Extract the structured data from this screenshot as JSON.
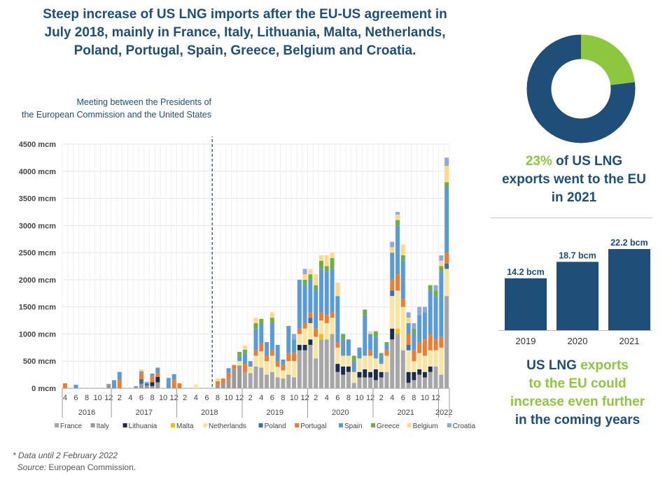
{
  "title": "Steep increase of US LNG imports after the EU-US agreement in July 2018, mainly in France, Italy, Lithuania, Malta, Netherlands, Poland, Portugal, Spain, Greece, Belgium and Croatia.",
  "meeting_annotation": {
    "line1": "Meeting between the Presidents of",
    "line2": "the European Commission and the United States"
  },
  "footnote": {
    "data_note": "Data until 2 February 2022",
    "source_label": "Source:",
    "source_text": "European Commission."
  },
  "kpi": {
    "percent": "23%",
    "text_line1": "of US LNG",
    "text_line2": "exports went to the EU",
    "text_line3": "in 2021"
  },
  "outlook": {
    "line1_a": "US LNG",
    "line1_b": "exports",
    "line2": "to the EU could",
    "line3": "increase even further",
    "line4": "in the coming years"
  },
  "colors": {
    "France": "#a6a6a6",
    "Italy": "#999999",
    "Lithuania": "#1c2b4a",
    "Malta": "#f2c200",
    "Netherlands": "#f8e5a0",
    "Poland": "#3a6fb0",
    "Portugal": "#ed7d31",
    "Spain": "#5b9bd5",
    "Greece": "#70ad47",
    "Belgium": "#ffd98a",
    "Croatia": "#8ea9db",
    "navy": "#1f4e79",
    "green": "#8dc63f"
  },
  "chart_data": [
    {
      "type": "bar",
      "stacked": true,
      "ylim": [
        0,
        4500
      ],
      "yticks": [
        "0 mcm",
        "500 mcm",
        "1000 mcm",
        "1500 mcm",
        "2000 mcm",
        "2500 mcm",
        "3000 mcm",
        "3500 mcm",
        "4000 mcm",
        "4500 mcm"
      ],
      "grid": true,
      "legend_position": "bottom",
      "series_names": [
        "France",
        "Italy",
        "Lithuania",
        "Malta",
        "Netherlands",
        "Poland",
        "Portugal",
        "Spain",
        "Greece",
        "Belgium",
        "Croatia"
      ],
      "year_labels": [
        "2016",
        "2017",
        "2018",
        "2019",
        "2020",
        "2021",
        "2022"
      ],
      "month_ticks": [
        "4",
        "6",
        "8",
        "10",
        "12",
        "2",
        "4",
        "6",
        "8",
        "10",
        "12",
        "2",
        "4",
        "6",
        "8",
        "10",
        "12",
        "2",
        "4",
        "6",
        "8",
        "10",
        "12",
        "2",
        "4",
        "6",
        "8",
        "10",
        "12",
        "2",
        "4",
        "6",
        "8",
        "10",
        "12"
      ],
      "annotation_month": "2018-07",
      "months": [
        {
          "m": "2016-04",
          "v": {
            "Portugal": 90
          }
        },
        {
          "m": "2016-05",
          "v": {}
        },
        {
          "m": "2016-06",
          "v": {
            "Spain": 65
          }
        },
        {
          "m": "2016-07",
          "v": {}
        },
        {
          "m": "2016-08",
          "v": {}
        },
        {
          "m": "2016-09",
          "v": {}
        },
        {
          "m": "2016-10",
          "v": {}
        },
        {
          "m": "2016-11",
          "v": {}
        },
        {
          "m": "2016-12",
          "v": {
            "Italy": 80
          }
        },
        {
          "m": "2017-01",
          "v": {
            "Spain": 150
          }
        },
        {
          "m": "2017-02",
          "v": {
            "Portugal": 160,
            "Spain": 140
          }
        },
        {
          "m": "2017-03",
          "v": {}
        },
        {
          "m": "2017-04",
          "v": {}
        },
        {
          "m": "2017-05",
          "v": {
            "Italy": 40
          }
        },
        {
          "m": "2017-06",
          "v": {
            "Italy": 80,
            "Poland": 90,
            "Portugal": 110,
            "Spain": 30,
            "Belgium": 40
          }
        },
        {
          "m": "2017-07",
          "v": {
            "Italy": 50,
            "Poland": 40,
            "Croatia": 30
          }
        },
        {
          "m": "2017-08",
          "v": {
            "Italy": 40,
            "Lithuania": 70,
            "Portugal": 120,
            "Spain": 40
          }
        },
        {
          "m": "2017-09",
          "v": {
            "Italy": 110,
            "Lithuania": 100,
            "Portugal": 80,
            "Spain": 90
          }
        },
        {
          "m": "2017-10",
          "v": {}
        },
        {
          "m": "2017-11",
          "v": {
            "Spain": 190
          }
        },
        {
          "m": "2017-12",
          "v": {
            "Portugal": 160,
            "Spain": 100
          }
        },
        {
          "m": "2018-01",
          "v": {
            "Portugal": 90
          }
        },
        {
          "m": "2018-02",
          "v": {}
        },
        {
          "m": "2018-03",
          "v": {}
        },
        {
          "m": "2018-04",
          "v": {
            "Netherlands": 70
          }
        },
        {
          "m": "2018-05",
          "v": {}
        },
        {
          "m": "2018-06",
          "v": {}
        },
        {
          "m": "2018-07",
          "v": {}
        },
        {
          "m": "2018-08",
          "v": {
            "Italy": 60,
            "Portugal": 70,
            "Belgium": 50
          }
        },
        {
          "m": "2018-09",
          "v": {
            "Italy": 80,
            "Portugal": 100
          }
        },
        {
          "m": "2018-10",
          "v": {
            "Italy": 180,
            "Portugal": 100,
            "Spain": 90
          }
        },
        {
          "m": "2018-11",
          "v": {
            "Italy": 350,
            "Portugal": 80
          }
        },
        {
          "m": "2018-12",
          "v": {
            "Italy": 420,
            "Netherlands": 80,
            "Spain": 90,
            "Greece": 80
          }
        },
        {
          "m": "2019-01",
          "v": {
            "France": 300,
            "Portugal": 150,
            "Spain": 200,
            "Greece": 60,
            "Belgium": 80
          }
        },
        {
          "m": "2019-02",
          "v": {
            "France": 280,
            "Netherlands": 120,
            "Spain": 100
          }
        },
        {
          "m": "2019-03",
          "v": {
            "France": 400,
            "Netherlands": 200,
            "Portugal": 100,
            "Spain": 400,
            "Greece": 100,
            "Belgium": 100
          }
        },
        {
          "m": "2019-04",
          "v": {
            "France": 380,
            "Netherlands": 300,
            "Portugal": 150,
            "Spain": 350,
            "Greece": 100
          }
        },
        {
          "m": "2019-05",
          "v": {
            "France": 250,
            "Netherlands": 250,
            "Portugal": 100,
            "Spain": 250
          }
        },
        {
          "m": "2019-06",
          "v": {
            "France": 300,
            "Netherlands": 300,
            "Portugal": 100,
            "Spain": 500,
            "Greece": 100,
            "Belgium": 100
          }
        },
        {
          "m": "2019-07",
          "v": {
            "France": 200,
            "Netherlands": 200,
            "Portugal": 100,
            "Spain": 300
          }
        },
        {
          "m": "2019-08",
          "v": {
            "France": 180,
            "Netherlands": 150,
            "Portugal": 100,
            "Spain": 100
          }
        },
        {
          "m": "2019-09",
          "v": {
            "France": 250,
            "Netherlands": 250,
            "Portugal": 150,
            "Spain": 500
          }
        },
        {
          "m": "2019-10",
          "v": {
            "France": 200,
            "Netherlands": 300,
            "Portugal": 150,
            "Spain": 250,
            "Croatia": 100
          }
        },
        {
          "m": "2019-11",
          "v": {
            "France": 700,
            "Lithuania": 100,
            "Netherlands": 200,
            "Portugal": 100,
            "Spain": 900
          }
        },
        {
          "m": "2019-12",
          "v": {
            "France": 700,
            "Lithuania": 100,
            "Netherlands": 300,
            "Portugal": 100,
            "Spain": 700,
            "Greece": 100,
            "Belgium": 100,
            "Croatia": 100
          }
        },
        {
          "m": "2020-01",
          "v": {
            "France": 800,
            "Lithuania": 100,
            "Netherlands": 300,
            "Poland": 100,
            "Portugal": 100,
            "Spain": 600,
            "Greece": 100,
            "Belgium": 100
          }
        },
        {
          "m": "2020-02",
          "v": {
            "France": 550,
            "Netherlands": 400,
            "Portugal": 150,
            "Spain": 700,
            "Greece": 100,
            "Belgium": 200
          }
        },
        {
          "m": "2020-03",
          "v": {
            "France": 900,
            "Malta": 100,
            "Netherlands": 250,
            "Portugal": 150,
            "Spain": 800,
            "Greece": 150,
            "Belgium": 100
          }
        },
        {
          "m": "2020-04",
          "v": {
            "France": 900,
            "Netherlands": 300,
            "Portugal": 150,
            "Spain": 800,
            "Greece": 100,
            "Belgium": 200
          }
        },
        {
          "m": "2020-05",
          "v": {
            "France": 1000,
            "Netherlands": 300,
            "Portugal": 100,
            "Spain": 800,
            "Greece": 200,
            "Belgium": 100
          }
        },
        {
          "m": "2020-06",
          "v": {
            "France": 300,
            "Lithuania": 150,
            "Netherlands": 300,
            "Portugal": 100,
            "Spain": 850,
            "Belgium": 250
          }
        },
        {
          "m": "2020-07",
          "v": {
            "France": 250,
            "Lithuania": 150,
            "Netherlands": 200,
            "Spain": 300,
            "Greece": 100
          }
        },
        {
          "m": "2020-08",
          "v": {
            "France": 300,
            "Lithuania": 100,
            "Netherlands": 200,
            "Spain": 300
          }
        },
        {
          "m": "2020-09",
          "v": {
            "France": 100,
            "Netherlands": 200,
            "Spain": 200,
            "Greece": 100
          }
        },
        {
          "m": "2020-10",
          "v": {
            "France": 200,
            "Lithuania": 100,
            "Netherlands": 250,
            "Spain": 200
          }
        },
        {
          "m": "2020-11",
          "v": {
            "France": 200,
            "Lithuania": 150,
            "Netherlands": 250,
            "Spain": 750,
            "Greece": 100
          }
        },
        {
          "m": "2020-12",
          "v": {
            "France": 200,
            "Lithuania": 100,
            "Netherlands": 300,
            "Portugal": 100,
            "Spain": 300,
            "Belgium": 50
          }
        },
        {
          "m": "2021-01",
          "v": {
            "France": 150,
            "Lithuania": 200,
            "Netherlands": 200,
            "Spain": 400,
            "Greece": 100
          }
        },
        {
          "m": "2021-02",
          "v": {
            "France": 200,
            "Lithuania": 100,
            "Netherlands": 150,
            "Spain": 150,
            "Greece": 50
          }
        },
        {
          "m": "2021-03",
          "v": {
            "France": 300,
            "Netherlands": 300,
            "Portugal": 100,
            "Spain": 100,
            "Greece": 50
          }
        },
        {
          "m": "2021-04",
          "v": {
            "France": 900,
            "Lithuania": 200,
            "Netherlands": 600,
            "Poland": 100,
            "Portugal": 200,
            "Spain": 500,
            "Belgium": 100,
            "Croatia": 100
          }
        },
        {
          "m": "2021-05",
          "v": {
            "France": 1000,
            "Malta": 100,
            "Netherlands": 700,
            "Portugal": 300,
            "Spain": 900,
            "Greece": 100,
            "Belgium": 100,
            "Croatia": 50
          }
        },
        {
          "m": "2021-06",
          "v": {
            "France": 700,
            "Netherlands": 800,
            "Portugal": 150,
            "Spain": 700,
            "Greece": 100,
            "Belgium": 200
          }
        },
        {
          "m": "2021-07",
          "v": {
            "France": 100,
            "Lithuania": 200,
            "Netherlands": 400,
            "Poland": 100,
            "Portugal": 200,
            "Spain": 200,
            "Belgium": 100,
            "Croatia": 100
          }
        },
        {
          "m": "2021-08",
          "v": {
            "France": 150,
            "Lithuania": 150,
            "Netherlands": 200,
            "Portugal": 200,
            "Spain": 300,
            "Greece": 100,
            "Croatia": 100
          }
        },
        {
          "m": "2021-09",
          "v": {
            "France": 250,
            "Lithuania": 100,
            "Netherlands": 300,
            "Portugal": 200,
            "Spain": 500,
            "Croatia": 150
          }
        },
        {
          "m": "2021-10",
          "v": {
            "France": 200,
            "Lithuania": 100,
            "Netherlands": 300,
            "Portugal": 300,
            "Spain": 500,
            "Croatia": 100
          }
        },
        {
          "m": "2021-11",
          "v": {
            "France": 300,
            "Lithuania": 100,
            "Netherlands": 300,
            "Portugal": 300,
            "Spain": 800,
            "Greece": 100
          }
        },
        {
          "m": "2021-12",
          "v": {
            "France": 400,
            "Netherlands": 300,
            "Portugal": 200,
            "Spain": 800,
            "Greece": 100,
            "Croatia": 100
          }
        },
        {
          "m": "2022-01",
          "v": {
            "France": 250,
            "Netherlands": 500,
            "Portugal": 200,
            "Spain": 1200,
            "Greece": 100,
            "Belgium": 100,
            "Croatia": 100
          }
        },
        {
          "m": "2022-02",
          "v": {
            "France": 1700,
            "Netherlands": 500,
            "Poland": 100,
            "Portugal": 200,
            "Spain": 1200,
            "Greece": 100,
            "Belgium": 300,
            "Croatia": 150
          }
        }
      ]
    },
    {
      "type": "bar",
      "categories": [
        "2019",
        "2020",
        "2021"
      ],
      "values": [
        14.2,
        18.7,
        22.2
      ],
      "value_labels": [
        "14.2 bcm",
        "18.7 bcm",
        "22.2 bcm"
      ],
      "ylim": [
        0,
        22.2
      ]
    },
    {
      "type": "pie",
      "donut": true,
      "slices": [
        {
          "label": "EU",
          "value": 23,
          "color": "#8dc63f"
        },
        {
          "label": "Other",
          "value": 77,
          "color": "#1f4e79"
        }
      ]
    }
  ]
}
